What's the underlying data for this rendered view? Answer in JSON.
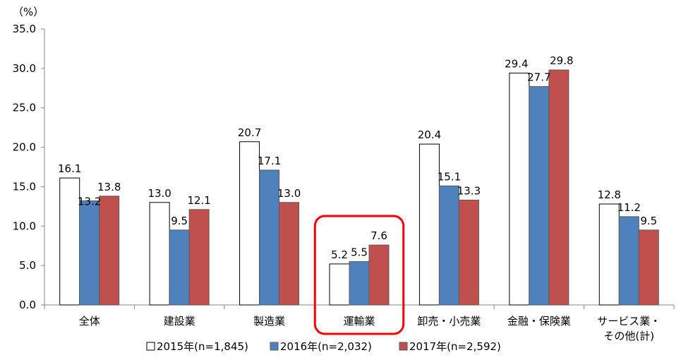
{
  "chart_data": {
    "type": "bar",
    "y_unit": "（%）",
    "ylim": [
      0,
      35
    ],
    "y_ticks": [
      "0.0",
      "5.0",
      "10.0",
      "15.0",
      "20.0",
      "25.0",
      "30.0",
      "35.0"
    ],
    "categories": [
      "全体",
      "建設業",
      "製造業",
      "運輸業",
      "卸売・小売業",
      "金融・保険業",
      "サービス業・その他(計)"
    ],
    "category_lines": [
      [
        "全体"
      ],
      [
        "建設業"
      ],
      [
        "製造業"
      ],
      [
        "運輸業"
      ],
      [
        "卸売・小売業"
      ],
      [
        "金融・保険業"
      ],
      [
        "サービス業・",
        "その他(計)"
      ]
    ],
    "series": [
      {
        "name": "2015年(n=1,845)",
        "values": [
          16.1,
          13.0,
          20.7,
          5.2,
          20.4,
          29.4,
          12.8
        ],
        "labels": [
          "16.1",
          "13.0",
          "20.7",
          "5.2",
          "20.4",
          "29.4",
          "12.8"
        ],
        "fill": "#ffffff"
      },
      {
        "name": "2016年(n=2,032)",
        "values": [
          13.2,
          9.5,
          17.1,
          5.5,
          15.1,
          27.7,
          11.2
        ],
        "labels": [
          "13.2",
          "9.5",
          "17.1",
          "5.5",
          "15.1",
          "27.7",
          "11.2"
        ],
        "fill": "#4f81bd"
      },
      {
        "name": "2017年(n=2,592)",
        "values": [
          13.8,
          12.1,
          13.0,
          7.6,
          13.3,
          29.8,
          9.5
        ],
        "labels": [
          "13.8",
          "12.1",
          "13.0",
          "7.6",
          "13.3",
          "29.8",
          "9.5"
        ],
        "fill": "#c0504d"
      }
    ],
    "highlight_category": "運輸業",
    "highlight_color": "#ff0000",
    "grid": false,
    "legend_position": "bottom"
  }
}
